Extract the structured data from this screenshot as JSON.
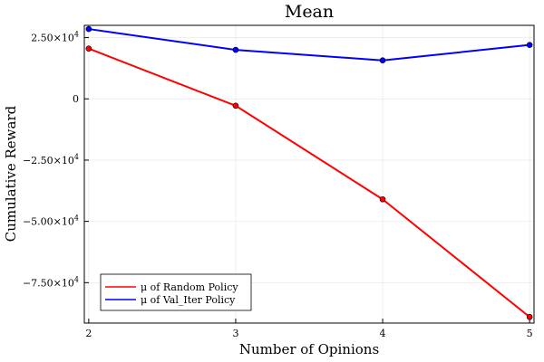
{
  "chart_data": {
    "type": "line",
    "title": "Mean",
    "xlabel": "Number of Opinions",
    "ylabel": "Cumulative Reward",
    "x": [
      2,
      3,
      4,
      5
    ],
    "xlim": [
      1.97,
      5.03
    ],
    "ylim": [
      -91500,
      30000
    ],
    "xticks": [
      2,
      3,
      4,
      5
    ],
    "yticks": [
      {
        "value": 25000,
        "mantissa": "2.50",
        "exp": "4"
      },
      {
        "value": 0,
        "mantissa": "0",
        "exp": ""
      },
      {
        "value": -25000,
        "mantissa": "−2.50",
        "exp": "4"
      },
      {
        "value": -50000,
        "mantissa": "−5.00",
        "exp": "4"
      },
      {
        "value": -75000,
        "mantissa": "−7.50",
        "exp": "4"
      }
    ],
    "grid": true,
    "legend_position": "bottom-left",
    "series": [
      {
        "name": "μ of Random Policy",
        "color": "#ff0000",
        "values": [
          20500,
          -2800,
          -41000,
          -89000
        ]
      },
      {
        "name": "μ of Val_Iter Policy",
        "color": "#0000ff",
        "values": [
          28500,
          20000,
          15700,
          22000
        ]
      }
    ]
  }
}
